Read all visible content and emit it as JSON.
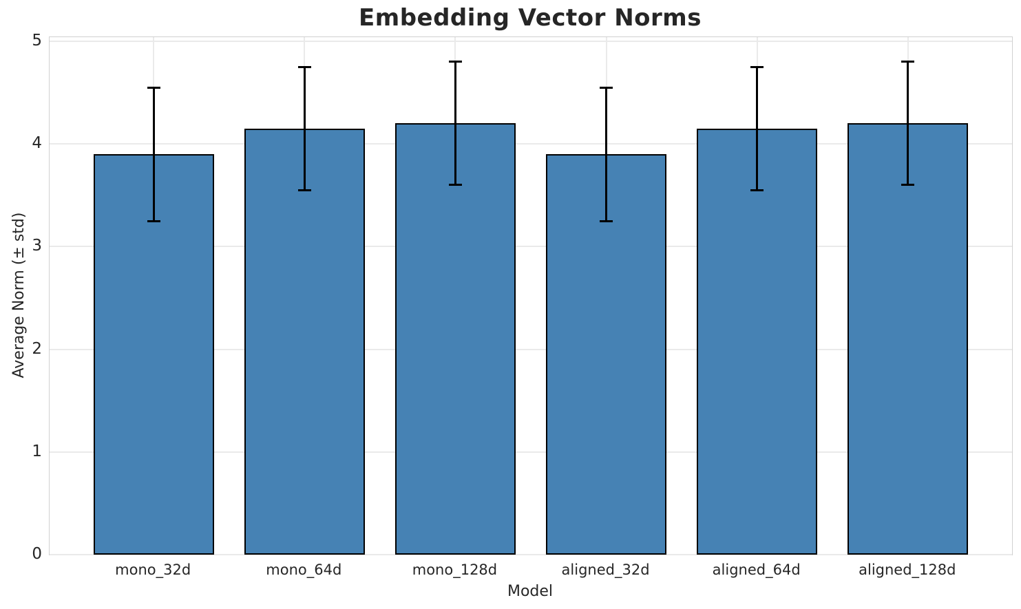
{
  "chart_data": {
    "type": "bar",
    "title": "Embedding Vector Norms",
    "xlabel": "Model",
    "ylabel": "Average Norm (± std)",
    "categories": [
      "mono_32d",
      "mono_64d",
      "mono_128d",
      "aligned_32d",
      "aligned_64d",
      "aligned_128d"
    ],
    "series": [
      {
        "name": "Average Norm",
        "values": [
          3.9,
          4.15,
          4.2,
          3.9,
          4.15,
          4.2
        ],
        "errors": [
          0.65,
          0.6,
          0.6,
          0.65,
          0.6,
          0.6
        ]
      }
    ],
    "ylim": [
      0,
      5.04
    ],
    "yticks": [
      0,
      1,
      2,
      3,
      4,
      5
    ],
    "xlim": [
      -0.69,
      5.69
    ],
    "bar_width": 0.8,
    "grid": "both",
    "legend": "none",
    "error_caps": true,
    "colors": {
      "bar_fill": "#4682b4",
      "bar_edge": "#000000",
      "error": "#000000",
      "grid": "#eaeaea",
      "spine": "#d0d0d0",
      "text": "#262626",
      "background": "#ffffff"
    }
  }
}
